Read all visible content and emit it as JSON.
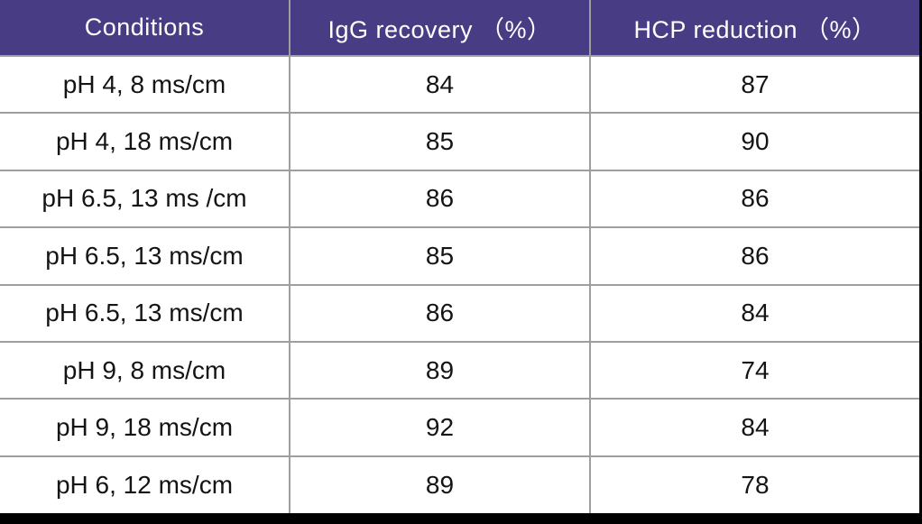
{
  "colors": {
    "header_bg": "#483d85",
    "header_text": "#ffffff",
    "body_text": "#141414",
    "gridline": "#9e9e9e",
    "frame": "#000000",
    "cell_bg": "#ffffff"
  },
  "table": {
    "columns": [
      "Conditions",
      "IgG recovery （%）",
      "HCP reduction （%）"
    ],
    "rows": [
      [
        "pH 4, 8 ms/cm",
        "84",
        "87"
      ],
      [
        "pH 4, 18 ms/cm",
        "85",
        "90"
      ],
      [
        "pH 6.5, 13 ms /cm",
        "86",
        "86"
      ],
      [
        "pH 6.5, 13 ms/cm",
        "85",
        "86"
      ],
      [
        "pH 6.5, 13 ms/cm",
        "86",
        "84"
      ],
      [
        "pH 9, 8 ms/cm",
        "89",
        "74"
      ],
      [
        "pH 9, 18 ms/cm",
        "92",
        "84"
      ],
      [
        "pH 6, 12 ms/cm",
        "89",
        "78"
      ]
    ]
  },
  "chart_data": {
    "type": "table",
    "title": "",
    "columns": [
      "Conditions",
      "IgG recovery (%)",
      "HCP reduction (%)"
    ],
    "categories": [
      "pH 4, 8 ms/cm",
      "pH 4, 18 ms/cm",
      "pH 6.5, 13 ms /cm",
      "pH 6.5, 13 ms/cm",
      "pH 6.5, 13 ms/cm",
      "pH 9, 8 ms/cm",
      "pH 9, 18 ms/cm",
      "pH 6, 12 ms/cm"
    ],
    "series": [
      {
        "name": "IgG recovery (%)",
        "values": [
          84,
          85,
          86,
          85,
          86,
          89,
          92,
          89
        ]
      },
      {
        "name": "HCP reduction (%)",
        "values": [
          87,
          90,
          86,
          86,
          84,
          74,
          84,
          78
        ]
      }
    ]
  }
}
